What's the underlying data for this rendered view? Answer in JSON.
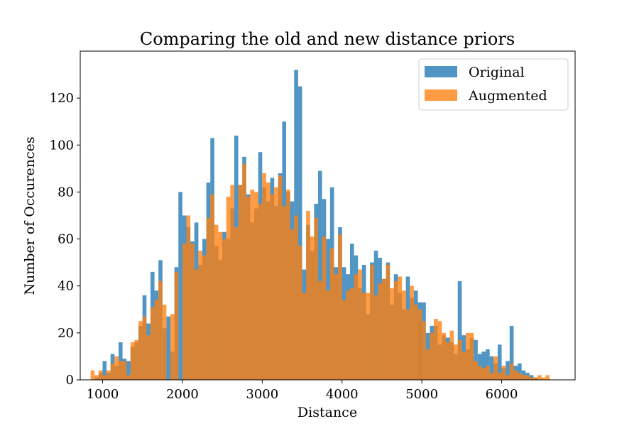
{
  "chart_data": {
    "type": "bar",
    "title": "Comparing the old and new distance priors",
    "xlabel": "Distance",
    "ylabel": "Number of Occurences",
    "xlim": [
      720,
      6920
    ],
    "ylim": [
      0,
      140
    ],
    "xticks": [
      1000,
      2000,
      3000,
      4000,
      5000,
      6000
    ],
    "yticks": [
      0,
      20,
      40,
      60,
      80,
      100,
      120
    ],
    "grid": false,
    "legend_position": "top-right",
    "bin_width": 50,
    "series": [
      {
        "name": "Original",
        "color": "#1f77b4",
        "opacity": 0.78,
        "bins": [
          [
            900,
            1
          ],
          [
            950,
            3
          ],
          [
            1000,
            8
          ],
          [
            1050,
            3
          ],
          [
            1100,
            11
          ],
          [
            1150,
            6
          ],
          [
            1200,
            16
          ],
          [
            1250,
            9
          ],
          [
            1300,
            8
          ],
          [
            1350,
            14
          ],
          [
            1400,
            16
          ],
          [
            1450,
            23
          ],
          [
            1500,
            36
          ],
          [
            1550,
            24
          ],
          [
            1600,
            46
          ],
          [
            1650,
            38
          ],
          [
            1700,
            51
          ],
          [
            1750,
            22
          ],
          [
            1800,
            27
          ],
          [
            1850,
            12
          ],
          [
            1900,
            48
          ],
          [
            1950,
            80
          ],
          [
            2000,
            70
          ],
          [
            2050,
            65
          ],
          [
            2100,
            59
          ],
          [
            2150,
            67
          ],
          [
            2200,
            49
          ],
          [
            2250,
            60
          ],
          [
            2300,
            84
          ],
          [
            2350,
            103
          ],
          [
            2400,
            57
          ],
          [
            2450,
            51
          ],
          [
            2500,
            63
          ],
          [
            2550,
            60
          ],
          [
            2600,
            73
          ],
          [
            2650,
            104
          ],
          [
            2700,
            83
          ],
          [
            2750,
            95
          ],
          [
            2800,
            79
          ],
          [
            2850,
            67
          ],
          [
            2900,
            73
          ],
          [
            2950,
            97
          ],
          [
            3000,
            82
          ],
          [
            3050,
            76
          ],
          [
            3100,
            86
          ],
          [
            3150,
            74
          ],
          [
            3200,
            88
          ],
          [
            3250,
            110
          ],
          [
            3300,
            80
          ],
          [
            3350,
            76
          ],
          [
            3400,
            132
          ],
          [
            3450,
            125
          ],
          [
            3500,
            47
          ],
          [
            3550,
            66
          ],
          [
            3600,
            55
          ],
          [
            3650,
            75
          ],
          [
            3700,
            89
          ],
          [
            3750,
            77
          ],
          [
            3800,
            60
          ],
          [
            3850,
            82
          ],
          [
            3900,
            48
          ],
          [
            3950,
            65
          ],
          [
            4000,
            48
          ],
          [
            4050,
            45
          ],
          [
            4100,
            58
          ],
          [
            4150,
            53
          ],
          [
            4200,
            39
          ],
          [
            4250,
            49
          ],
          [
            4300,
            28
          ],
          [
            4350,
            50
          ],
          [
            4400,
            55
          ],
          [
            4450,
            52
          ],
          [
            4500,
            43
          ],
          [
            4550,
            50
          ],
          [
            4600,
            32
          ],
          [
            4650,
            45
          ],
          [
            4700,
            37
          ],
          [
            4750,
            30
          ],
          [
            4800,
            44
          ],
          [
            4850,
            35
          ],
          [
            4900,
            38
          ],
          [
            4950,
            33
          ],
          [
            4950,
            25
          ],
          [
            5000,
            33
          ],
          [
            5050,
            20
          ],
          [
            5100,
            23
          ],
          [
            5150,
            23
          ],
          [
            5200,
            15
          ],
          [
            5250,
            19
          ],
          [
            5300,
            18
          ],
          [
            5350,
            16
          ],
          [
            5400,
            11
          ],
          [
            5450,
            42
          ],
          [
            5500,
            19
          ],
          [
            5550,
            13
          ],
          [
            5600,
            18
          ],
          [
            5650,
            17
          ],
          [
            5700,
            11
          ],
          [
            5750,
            12
          ],
          [
            5800,
            13
          ],
          [
            5850,
            10
          ],
          [
            5900,
            7
          ],
          [
            5950,
            15
          ],
          [
            6000,
            5
          ],
          [
            6050,
            8
          ],
          [
            6100,
            23
          ],
          [
            6150,
            6
          ],
          [
            6200,
            7
          ],
          [
            6250,
            4
          ],
          [
            6300,
            3
          ],
          [
            6350,
            2
          ],
          [
            6400,
            1
          ]
        ]
      },
      {
        "name": "Augmented",
        "color": "#ff7f0e",
        "opacity": 0.78,
        "bins": [
          [
            850,
            4
          ],
          [
            900,
            2
          ],
          [
            950,
            4
          ],
          [
            1000,
            2
          ],
          [
            1050,
            4
          ],
          [
            1100,
            7
          ],
          [
            1150,
            10
          ],
          [
            1200,
            8
          ],
          [
            1250,
            8
          ],
          [
            1300,
            2
          ],
          [
            1350,
            16
          ],
          [
            1400,
            17
          ],
          [
            1450,
            25
          ],
          [
            1500,
            27
          ],
          [
            1550,
            19
          ],
          [
            1600,
            31
          ],
          [
            1650,
            34
          ],
          [
            1700,
            42
          ],
          [
            1750,
            32
          ],
          [
            1800,
            0
          ],
          [
            1850,
            28
          ],
          [
            1900,
            46
          ],
          [
            1950,
            0
          ],
          [
            2000,
            58
          ],
          [
            2050,
            70
          ],
          [
            2100,
            58
          ],
          [
            2150,
            47
          ],
          [
            2200,
            55
          ],
          [
            2250,
            53
          ],
          [
            2300,
            69
          ],
          [
            2350,
            79
          ],
          [
            2400,
            66
          ],
          [
            2450,
            63
          ],
          [
            2500,
            60
          ],
          [
            2550,
            78
          ],
          [
            2600,
            83
          ],
          [
            2650,
            65
          ],
          [
            2700,
            83
          ],
          [
            2750,
            92
          ],
          [
            2800,
            78
          ],
          [
            2850,
            81
          ],
          [
            2900,
            80
          ],
          [
            2950,
            75
          ],
          [
            3000,
            88
          ],
          [
            3050,
            84
          ],
          [
            3100,
            79
          ],
          [
            3150,
            82
          ],
          [
            3200,
            87
          ],
          [
            3250,
            74
          ],
          [
            3300,
            81
          ],
          [
            3350,
            64
          ],
          [
            3400,
            70
          ],
          [
            3450,
            57
          ],
          [
            3500,
            37
          ],
          [
            3550,
            72
          ],
          [
            3600,
            61
          ],
          [
            3650,
            69
          ],
          [
            3700,
            42
          ],
          [
            3750,
            61
          ],
          [
            3800,
            38
          ],
          [
            3850,
            56
          ],
          [
            3900,
            45
          ],
          [
            3950,
            62
          ],
          [
            4000,
            34
          ],
          [
            4050,
            38
          ],
          [
            4100,
            39
          ],
          [
            4150,
            45
          ],
          [
            4200,
            47
          ],
          [
            4250,
            37
          ],
          [
            4300,
            37
          ],
          [
            4350,
            49
          ],
          [
            4400,
            36
          ],
          [
            4450,
            41
          ],
          [
            4500,
            43
          ],
          [
            4550,
            49
          ],
          [
            4600,
            39
          ],
          [
            4650,
            42
          ],
          [
            4700,
            44
          ],
          [
            4750,
            38
          ],
          [
            4800,
            30
          ],
          [
            4850,
            40
          ],
          [
            4900,
            32
          ],
          [
            4950,
            30
          ],
          [
            5000,
            25
          ],
          [
            5050,
            13
          ],
          [
            5100,
            20
          ],
          [
            5150,
            26
          ],
          [
            5200,
            25
          ],
          [
            5250,
            20
          ],
          [
            5300,
            16
          ],
          [
            5350,
            21
          ],
          [
            5400,
            15
          ],
          [
            5450,
            17
          ],
          [
            5500,
            12
          ],
          [
            5550,
            20
          ],
          [
            5600,
            20
          ],
          [
            5650,
            8
          ],
          [
            5700,
            6
          ],
          [
            5750,
            5
          ],
          [
            5800,
            6
          ],
          [
            5850,
            3
          ],
          [
            5900,
            10
          ],
          [
            5950,
            3
          ],
          [
            6000,
            6
          ],
          [
            6050,
            2
          ],
          [
            6100,
            7
          ],
          [
            6150,
            4
          ],
          [
            6200,
            3
          ],
          [
            6250,
            2
          ],
          [
            6300,
            2
          ],
          [
            6350,
            1
          ],
          [
            6400,
            1
          ],
          [
            6450,
            2
          ],
          [
            6500,
            1
          ],
          [
            6550,
            2
          ]
        ]
      }
    ]
  }
}
